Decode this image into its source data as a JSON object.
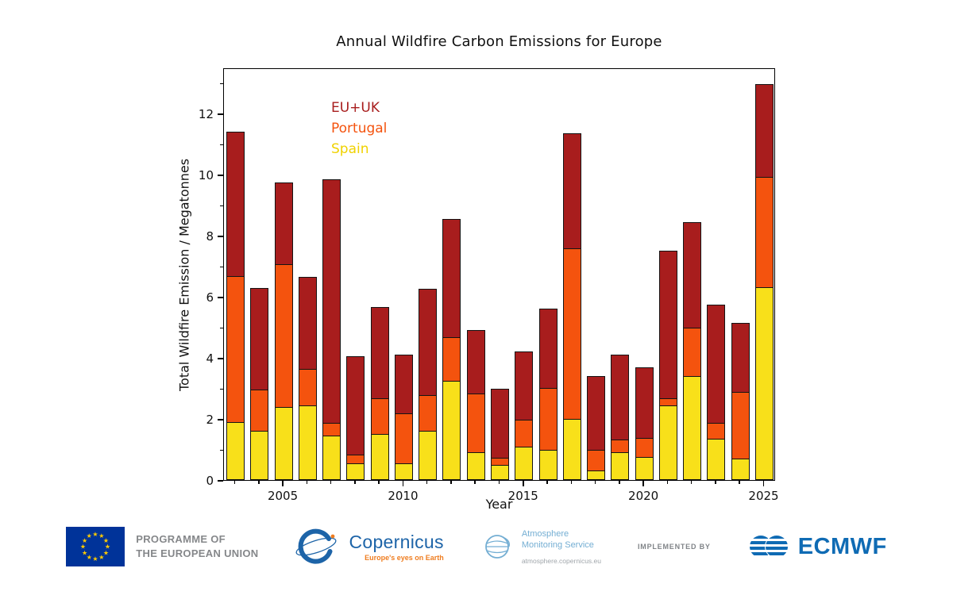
{
  "chart_data": {
    "type": "bar",
    "stacked": true,
    "title": "Annual Wildfire Carbon Emissions for Europe",
    "xlabel": "Year",
    "ylabel": "Total Wildfire Emission / Megatonnes",
    "ylim": [
      0,
      13.5
    ],
    "yticks": [
      0,
      2,
      4,
      6,
      8,
      10,
      12
    ],
    "yticks_minor": [
      1,
      3,
      5,
      7,
      9,
      11,
      13
    ],
    "xticks": [
      2005,
      2010,
      2015,
      2020,
      2025
    ],
    "grid": false,
    "legend_position": "upper-left-inside",
    "categories": [
      2003,
      2004,
      2005,
      2006,
      2007,
      2008,
      2009,
      2010,
      2011,
      2012,
      2013,
      2014,
      2015,
      2016,
      2017,
      2018,
      2019,
      2020,
      2021,
      2022,
      2023,
      2024,
      2025
    ],
    "series": [
      {
        "name": "Spain",
        "color": "#f8e01a",
        "values": [
          1.9,
          1.6,
          2.4,
          2.45,
          1.45,
          0.55,
          1.5,
          0.55,
          1.6,
          3.25,
          0.9,
          0.5,
          1.1,
          1.0,
          2.0,
          0.3,
          0.9,
          0.75,
          2.45,
          3.4,
          1.35,
          0.7,
          6.3
        ]
      },
      {
        "name": "Portugal",
        "color": "#f4530e",
        "values": [
          4.8,
          1.4,
          4.7,
          1.2,
          0.45,
          0.3,
          1.2,
          1.65,
          1.2,
          1.45,
          1.95,
          0.25,
          0.9,
          2.05,
          5.6,
          0.7,
          0.45,
          0.65,
          0.25,
          1.6,
          0.55,
          2.2,
          3.65
        ]
      },
      {
        "name": "EU+UK",
        "color": "#a81d1d",
        "values": [
          4.75,
          3.35,
          2.7,
          3.05,
          8.0,
          3.25,
          3.0,
          1.95,
          3.5,
          3.9,
          2.1,
          2.3,
          2.25,
          2.6,
          3.8,
          2.45,
          2.8,
          2.35,
          4.85,
          3.5,
          3.9,
          2.3,
          3.05
        ]
      }
    ],
    "totals": [
      11.45,
      6.35,
      9.8,
      6.7,
      9.9,
      4.1,
      5.7,
      4.15,
      6.3,
      8.6,
      4.95,
      3.05,
      4.25,
      5.65,
      11.4,
      3.45,
      4.15,
      3.75,
      7.55,
      8.5,
      5.8,
      5.2,
      13.0
    ],
    "legend": [
      {
        "label": "EU+UK",
        "color": "#a81d1d"
      },
      {
        "label": "Portugal",
        "color": "#f4530e"
      },
      {
        "label": "Spain",
        "color": "#f0d200"
      }
    ]
  },
  "footer": {
    "eu": {
      "line1": "PROGRAMME OF",
      "line2": "THE EUROPEAN UNION"
    },
    "copernicus": {
      "name": "Copernicus",
      "tagline": "Europe's eyes on Earth"
    },
    "ams": {
      "line1": "Atmosphere",
      "line2": "Monitoring Service",
      "url": "atmosphere.copernicus.eu"
    },
    "implemented_by": "IMPLEMENTED BY",
    "ecmwf": "ECMWF"
  },
  "icons": {
    "eu-flag-icon": "blue rect with circle of 12 yellow stars",
    "copernicus-icon": "blue orbit swirl sphere",
    "ams-globe-icon": "light-blue globe with latitude arcs",
    "ecmwf-icon": "blue striped overlapping spheres"
  },
  "colors": {
    "eu_blue": "#003399",
    "star_yellow": "#ffcc00",
    "copernicus_blue": "#1d64a8",
    "copernicus_orange": "#ef7d20",
    "ams_blue": "#74aed3",
    "ecmwf_blue": "#0f6bb4",
    "bar_edge": "#141414"
  }
}
